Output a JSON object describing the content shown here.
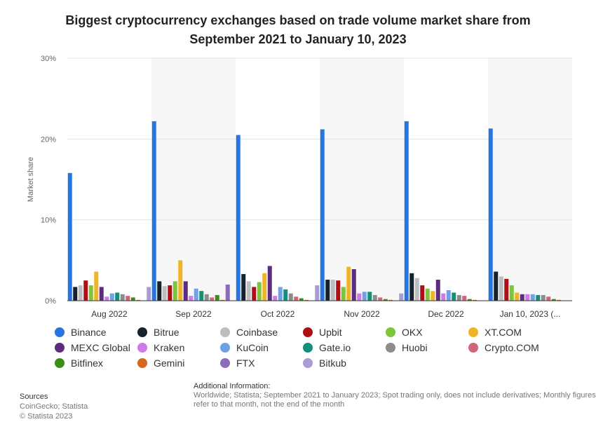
{
  "title": "Biggest cryptocurrency exchanges based on trade volume market share from\nSeptember 2021 to January 10, 2023",
  "chart_data": {
    "type": "bar",
    "title": "Biggest cryptocurrency exchanges based on trade volume market share from September 2021 to January 10, 2023",
    "xlabel": "",
    "ylabel": "Market share",
    "ylim": [
      0,
      30
    ],
    "yticks": [
      0,
      10,
      20,
      30
    ],
    "ytick_labels": [
      "0%",
      "10%",
      "20%",
      "30%"
    ],
    "grid": true,
    "legend_position": "bottom",
    "categories": [
      "Aug 2022",
      "Sep 2022",
      "Oct 2022",
      "Nov 2022",
      "Dec 2022",
      "Jan 10, 2023 (..."
    ],
    "series": [
      {
        "name": "Binance",
        "color": "#2876dd",
        "values": [
          15.8,
          22.2,
          20.5,
          21.2,
          22.2,
          21.3
        ]
      },
      {
        "name": "Bitrue",
        "color": "#15232f",
        "values": [
          1.7,
          2.4,
          3.3,
          2.6,
          3.4,
          3.6
        ]
      },
      {
        "name": "Coinbase",
        "color": "#bdbdbd",
        "values": [
          1.9,
          1.8,
          2.4,
          2.6,
          2.8,
          3.0
        ]
      },
      {
        "name": "Upbit",
        "color": "#ad0f16",
        "values": [
          2.5,
          1.9,
          1.7,
          2.5,
          1.9,
          2.7
        ]
      },
      {
        "name": "OKX",
        "color": "#7bc63a",
        "values": [
          1.9,
          2.4,
          2.3,
          1.7,
          1.5,
          1.9
        ]
      },
      {
        "name": "XT.COM",
        "color": "#f0b429",
        "values": [
          3.6,
          5.0,
          3.4,
          4.2,
          1.2,
          1.0
        ]
      },
      {
        "name": "MEXC Global",
        "color": "#5c2d7e",
        "values": [
          1.7,
          2.4,
          4.3,
          3.9,
          2.6,
          0.8
        ]
      },
      {
        "name": "Kraken",
        "color": "#cc7ce4",
        "values": [
          0.5,
          0.6,
          0.6,
          0.9,
          0.9,
          0.8
        ]
      },
      {
        "name": "KuCoin",
        "color": "#6ea1e8",
        "values": [
          0.9,
          1.5,
          1.7,
          1.1,
          1.3,
          0.8
        ]
      },
      {
        "name": "Gate.io",
        "color": "#138f7c",
        "values": [
          1.0,
          1.2,
          1.4,
          1.1,
          1.0,
          0.7
        ]
      },
      {
        "name": "Huobi",
        "color": "#8c8c8c",
        "values": [
          0.8,
          0.8,
          0.9,
          0.7,
          0.7,
          0.7
        ]
      },
      {
        "name": "Crypto.COM",
        "color": "#d1657b",
        "values": [
          0.6,
          0.4,
          0.5,
          0.4,
          0.6,
          0.5
        ]
      },
      {
        "name": "Bitfinex",
        "color": "#3c8c18",
        "values": [
          0.4,
          0.7,
          0.3,
          0.2,
          0.2,
          0.2
        ]
      },
      {
        "name": "Gemini",
        "color": "#d2691e",
        "values": [
          0.1,
          0.1,
          0.1,
          0.1,
          0.1,
          0.1
        ]
      },
      {
        "name": "FTX",
        "color": "#8e6bb8",
        "values": [
          0.0,
          2.0,
          0.0,
          0.0,
          0.0,
          0.0
        ]
      },
      {
        "name": "Bitkub",
        "color": "#a99bd8",
        "values": [
          1.7,
          0.0,
          1.9,
          0.9,
          0.0,
          0.0
        ]
      }
    ]
  },
  "sources": {
    "heading": "Sources",
    "line1": "CoinGecko; Statista",
    "line2": "© Statista 2023"
  },
  "additional_info": {
    "heading": "Additional Information:",
    "text": "Worldwide; Statista; September 2021 to January 2023; Spot trading only, does not include derivatives; Monthly figures refer to that month, not the end of the month"
  }
}
